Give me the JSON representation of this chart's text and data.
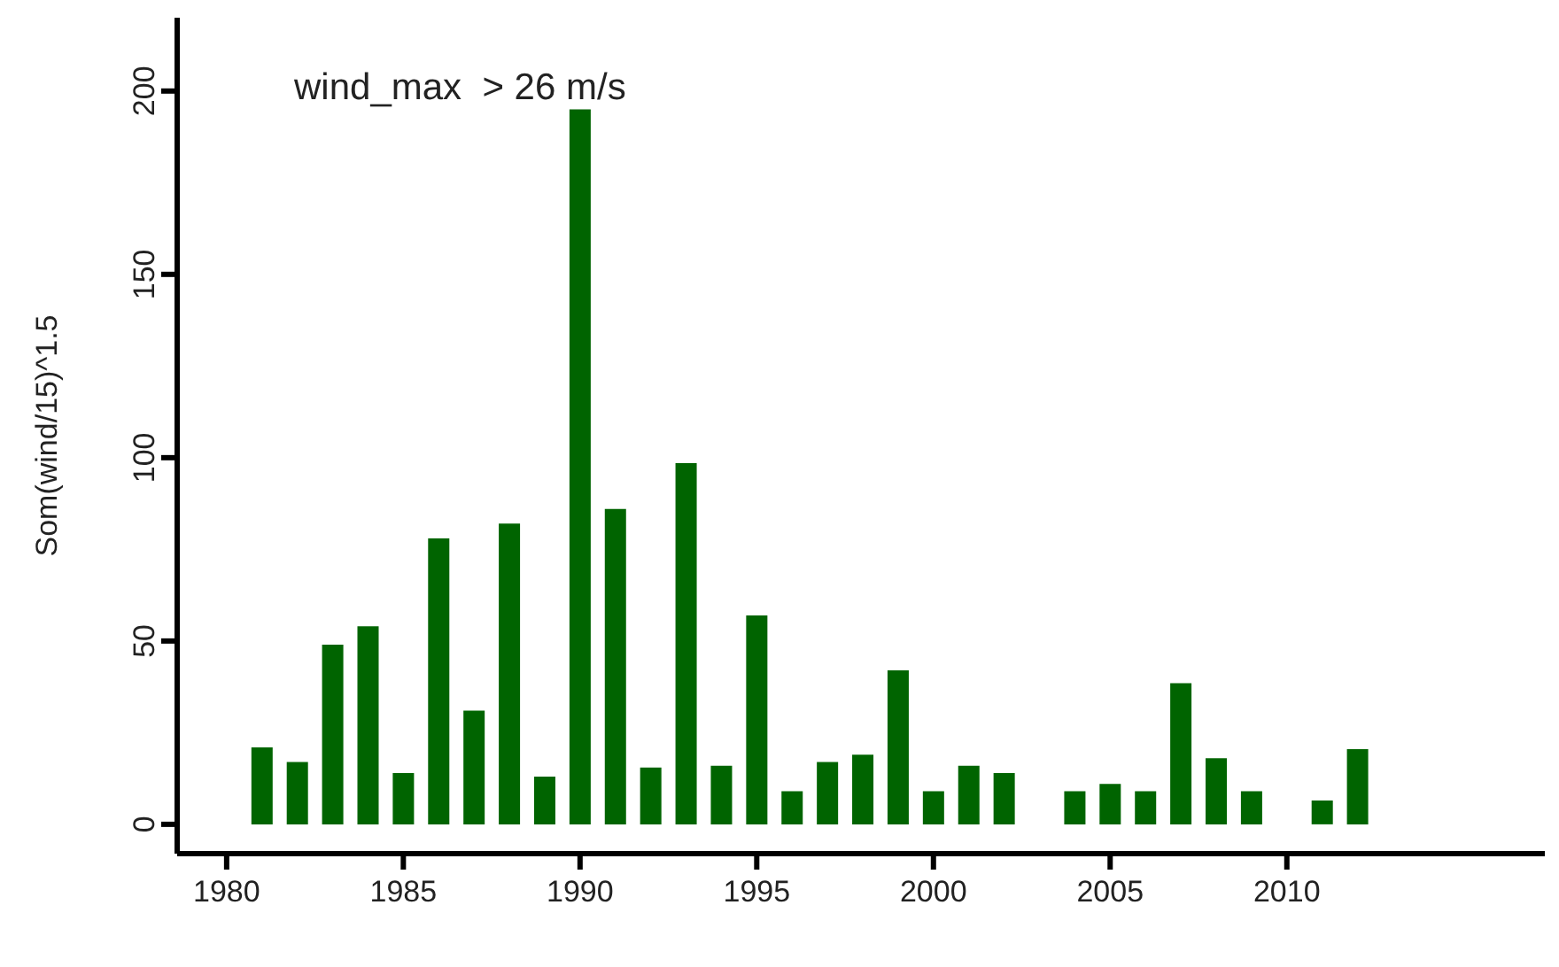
{
  "chart_data": {
    "type": "bar",
    "ylabel": "Som(wind/15)^1.5",
    "annotations": [
      "wind_max  > 26 m/s"
    ],
    "x": [
      1981,
      1982,
      1983,
      1984,
      1985,
      1986,
      1987,
      1988,
      1989,
      1990,
      1991,
      1992,
      1993,
      1994,
      1995,
      1996,
      1997,
      1998,
      1999,
      2000,
      2001,
      2002,
      2003,
      2004,
      2005,
      2006,
      2007,
      2008,
      2009,
      2010,
      2011,
      2012
    ],
    "values": [
      21,
      17,
      49,
      54,
      14,
      78,
      31,
      82,
      13,
      195,
      86,
      15.5,
      98.5,
      16,
      57,
      9,
      17,
      19,
      42,
      9,
      16,
      14,
      null,
      9,
      11,
      9,
      38.5,
      18,
      9,
      null,
      6.5,
      20.5
    ],
    "color": "#006400",
    "xlim": [
      1978.6,
      2017.3
    ],
    "xticks": [
      1980,
      1985,
      1990,
      1995,
      2000,
      2005,
      2010
    ],
    "ylim": [
      -8,
      220
    ],
    "yticks": [
      0,
      50,
      100,
      150,
      200
    ],
    "grid": false,
    "legend": false
  }
}
